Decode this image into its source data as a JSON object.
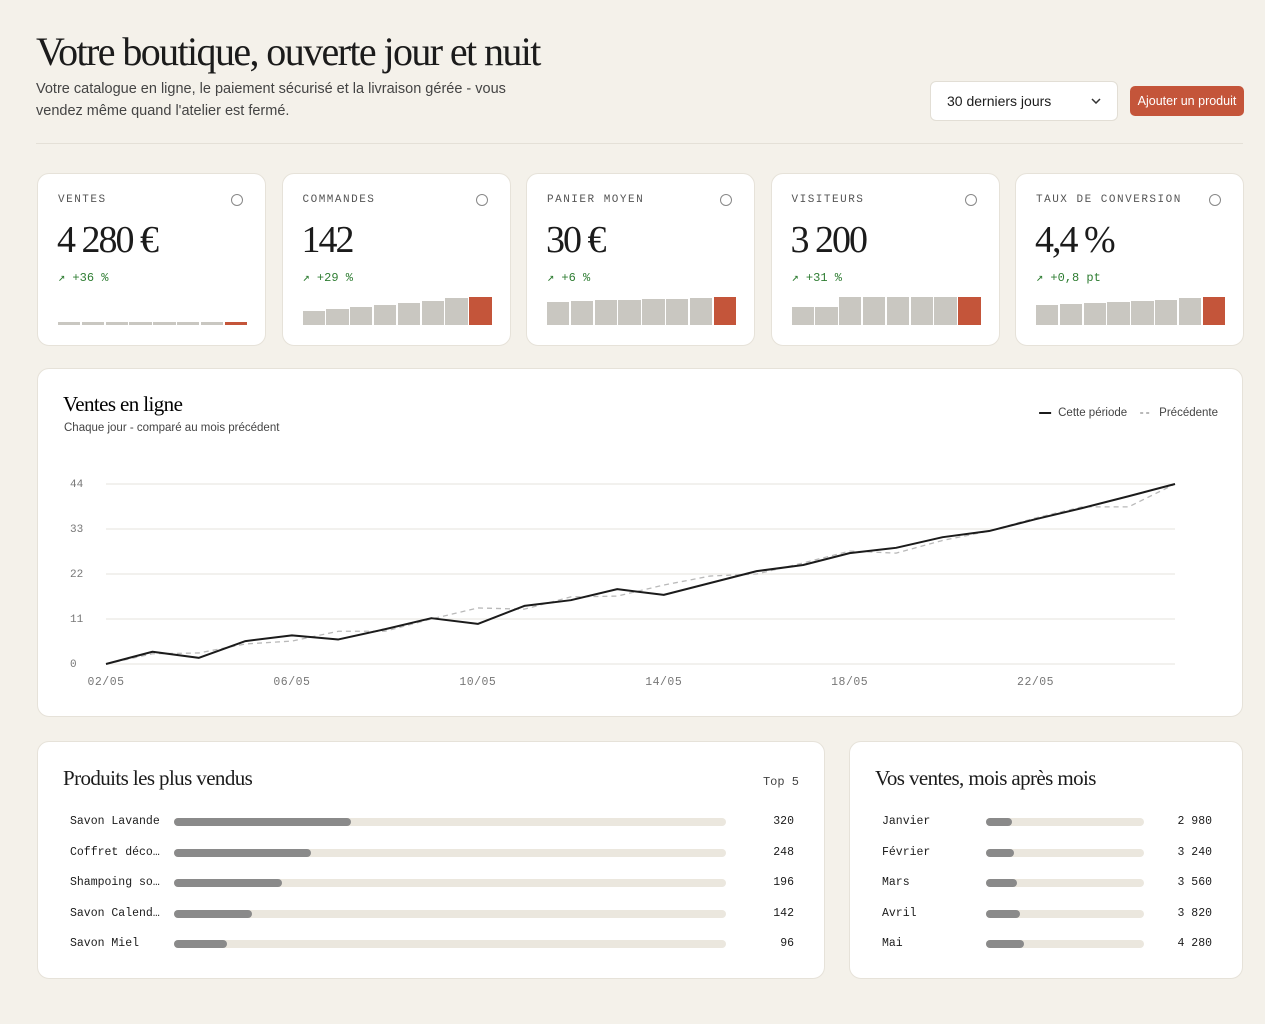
{
  "header": {
    "title": "Votre boutique, ouverte jour et nuit",
    "subtitle": "Votre catalogue en ligne, le paiement sécurisé et la livraison gérée - vous vendez même quand l'atelier est fermé.",
    "period": "30 derniers jours",
    "button": "Ajouter un produit"
  },
  "kpis": [
    {
      "label": "VENTES",
      "value": "4 280 €",
      "change": "↗ +36 %",
      "spark": [
        10,
        10,
        10,
        10,
        10,
        10,
        10,
        10
      ]
    },
    {
      "label": "COMMANDES",
      "value": "142",
      "change": "↗ +29 %",
      "spark": [
        50,
        57,
        64,
        71,
        79,
        86,
        96,
        100
      ]
    },
    {
      "label": "PANIER MOYEN",
      "value": "30 €",
      "change": "↗ +6 %",
      "spark": [
        82,
        86,
        89,
        89,
        93,
        93,
        96,
        100
      ]
    },
    {
      "label": "VISITEURS",
      "value": "3 200",
      "change": "↗ +31 %",
      "spark": [
        64,
        64,
        100,
        100,
        100,
        100,
        100,
        100
      ]
    },
    {
      "label": "TAUX DE CONVERSION",
      "value": "4,4 %",
      "change": "↗ +0,8 pt",
      "spark": [
        71,
        75,
        79,
        82,
        86,
        89,
        96,
        100
      ]
    }
  ],
  "chart_data": [
    {
      "type": "line",
      "title": "Ventes en ligne",
      "subtitle": "Chaque jour - comparé au mois précédent",
      "categories": [
        "02/05",
        null,
        null,
        null,
        "06/05",
        null,
        null,
        null,
        "10/05",
        null,
        null,
        null,
        "14/05",
        null,
        null,
        null,
        "18/05",
        null,
        null,
        null,
        "22/05",
        null,
        null,
        null
      ],
      "series": [
        {
          "name": "Cette période",
          "color": "#1b1b1b",
          "values": [
            0,
            3,
            1.5,
            5.6,
            7,
            6,
            8.5,
            11.2,
            9.8,
            14.2,
            15.6,
            18.3,
            16.9,
            19.8,
            22.7,
            24.2,
            27.1,
            28.4,
            31,
            32.5,
            35.4,
            38.1,
            41,
            44
          ]
        },
        {
          "name": "Précédente",
          "color": "#b9b9b9",
          "dashed": true,
          "values": [
            0,
            2.5,
            2.7,
            4.9,
            5.6,
            8,
            8,
            11,
            13.7,
            13.4,
            16.4,
            16.6,
            19.3,
            21.5,
            22,
            24.7,
            27.6,
            27.1,
            30.2,
            32.5,
            35.7,
            38.4,
            38.4,
            44
          ]
        }
      ],
      "ylim": [
        0,
        44
      ],
      "yticks": [
        0,
        11,
        22,
        33,
        44
      ],
      "grid": true,
      "legend": "top-right"
    },
    {
      "type": "hbar",
      "title": "Produits les plus vendus",
      "note": "Top 5",
      "categories": [
        "Savon Lavande",
        "Coffret déco…",
        "Shampoing so…",
        "Savon Calend…",
        "Savon Miel"
      ],
      "values": [
        320,
        248,
        196,
        142,
        96
      ],
      "xlim": [
        0,
        1000
      ]
    },
    {
      "type": "hbar",
      "title": "Vos ventes, mois après mois",
      "categories": [
        "Janvier",
        "Février",
        "Mars",
        "Avril",
        "Mai"
      ],
      "values": [
        2980,
        3240,
        3560,
        3820,
        4280
      ],
      "value_labels": [
        "2 980",
        "3 240",
        "3 560",
        "3 820",
        "4 280"
      ],
      "xlim": [
        0,
        18000
      ]
    }
  ]
}
